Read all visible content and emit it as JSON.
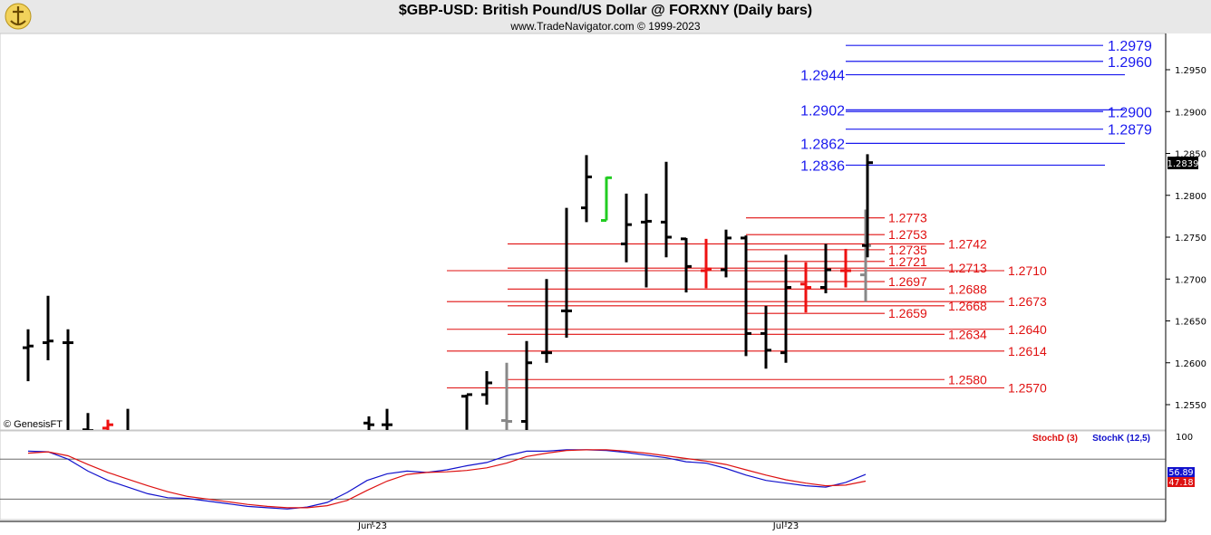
{
  "header": {
    "title": "$GBP-USD:  British Pound/US Dollar @ FORXNY  (Daily bars)",
    "copyright": "www.TradeNavigator.com © 1999-2023"
  },
  "watermark": "© GenesisFT",
  "colors": {
    "blue_level": "#1a1aee",
    "red_level": "#e01010",
    "bar_up": "#000000",
    "bar_green": "#22cc22",
    "bar_red": "#ee1111",
    "bar_gray": "#888888",
    "stoch_d": "#dd1111",
    "stoch_k": "#1111cc"
  },
  "chart_data": [
    {
      "type": "ohlc",
      "title": "$GBP-USD:  British Pound/US Dollar @ FORXNY  (Daily bars)",
      "ylim": [
        1.251,
        1.299
      ],
      "y_ticks": [
        "1.2550",
        "1.2600",
        "1.2650",
        "1.2700",
        "1.2750",
        "1.2800",
        "1.2850",
        "1.2900",
        "1.2950"
      ],
      "x_ticks": [
        "Jun-23",
        "Jul-23"
      ],
      "last_price": "1.2839",
      "bars": [
        {
          "h": 1.264,
          "l": 1.2578,
          "o": 1.2618,
          "c": 1.262,
          "color": "black"
        },
        {
          "h": 1.268,
          "l": 1.2603,
          "o": 1.2624,
          "c": 1.2626,
          "color": "black"
        },
        {
          "h": 1.264,
          "l": 1.251,
          "o": 1.2624,
          "c": 1.2624,
          "color": "black"
        },
        {
          "h": 1.254,
          "l": 1.251,
          "o": 1.252,
          "c": 1.2519,
          "color": "black"
        },
        {
          "h": 1.2532,
          "l": 1.2518,
          "o": 1.2522,
          "c": 1.2526,
          "color": "red"
        },
        {
          "h": 1.2545,
          "l": 1.251,
          "o": 1.2515,
          "c": 1.2518,
          "color": "black"
        },
        {
          "h": 1.2536,
          "l": 1.251,
          "o": 1.2528,
          "c": 1.2526,
          "color": "black"
        },
        {
          "h": 1.2545,
          "l": 1.251,
          "o": 1.2526,
          "c": 1.2526,
          "color": "black"
        },
        {
          "h": 1.2562,
          "l": 1.252,
          "o": 1.256,
          "c": 1.2562,
          "color": "black"
        },
        {
          "h": 1.259,
          "l": 1.255,
          "o": 1.2562,
          "c": 1.2576,
          "color": "black"
        },
        {
          "h": 1.26,
          "l": 1.251,
          "o": 1.2531,
          "c": 1.253,
          "color": "gray"
        },
        {
          "h": 1.2626,
          "l": 1.251,
          "o": 1.253,
          "c": 1.26,
          "color": "black"
        },
        {
          "h": 1.27,
          "l": 1.26,
          "o": 1.2612,
          "c": 1.2612,
          "color": "black"
        },
        {
          "h": 1.2785,
          "l": 1.263,
          "o": 1.2662,
          "c": 1.2662,
          "color": "black"
        },
        {
          "h": 1.2848,
          "l": 1.2768,
          "o": 1.2785,
          "c": 1.2822,
          "color": "black"
        },
        {
          "h": 1.2822,
          "l": 1.277,
          "o": 1.277,
          "c": 1.2821,
          "color": "green"
        },
        {
          "h": 1.2802,
          "l": 1.272,
          "o": 1.2742,
          "c": 1.2765,
          "color": "black"
        },
        {
          "h": 1.2802,
          "l": 1.269,
          "o": 1.2768,
          "c": 1.2769,
          "color": "black"
        },
        {
          "h": 1.284,
          "l": 1.2726,
          "o": 1.2768,
          "c": 1.275,
          "color": "black"
        },
        {
          "h": 1.2749,
          "l": 1.2684,
          "o": 1.2748,
          "c": 1.2715,
          "color": "black"
        },
        {
          "h": 1.2748,
          "l": 1.2689,
          "o": 1.271,
          "c": 1.2712,
          "color": "red"
        },
        {
          "h": 1.2759,
          "l": 1.2702,
          "o": 1.2711,
          "c": 1.2749,
          "color": "black"
        },
        {
          "h": 1.2752,
          "l": 1.2608,
          "o": 1.2749,
          "c": 1.2635,
          "color": "black"
        },
        {
          "h": 1.2668,
          "l": 1.2593,
          "o": 1.2635,
          "c": 1.2615,
          "color": "black"
        },
        {
          "h": 1.2729,
          "l": 1.26,
          "o": 1.2612,
          "c": 1.269,
          "color": "black"
        },
        {
          "h": 1.272,
          "l": 1.266,
          "o": 1.2694,
          "c": 1.269,
          "color": "red"
        },
        {
          "h": 1.2742,
          "l": 1.2683,
          "o": 1.269,
          "c": 1.2711,
          "color": "black"
        },
        {
          "h": 1.2736,
          "l": 1.269,
          "o": 1.271,
          "c": 1.271,
          "color": "red"
        },
        {
          "h": 1.2783,
          "l": 1.2673,
          "o": 1.2705,
          "c": 1.274,
          "color": "gray"
        },
        {
          "h": 1.2849,
          "l": 1.2726,
          "o": 1.274,
          "c": 1.2839,
          "color": "black"
        }
      ],
      "levels_blue": [
        {
          "value": 1.2979,
          "label": "1.2979",
          "label_side": "right"
        },
        {
          "value": 1.296,
          "label": "1.2960",
          "label_side": "right"
        },
        {
          "value": 1.2944,
          "label": "1.2944",
          "label_side": "left"
        },
        {
          "value": 1.2902,
          "label": "1.2902",
          "label_side": "left"
        },
        {
          "value": 1.29,
          "label": "1.2900",
          "label_side": "right"
        },
        {
          "value": 1.2879,
          "label": "1.2879",
          "label_side": "right"
        },
        {
          "value": 1.2862,
          "label": "1.2862",
          "label_side": "left"
        },
        {
          "value": 1.2836,
          "label": "1.2836",
          "label_side": "left"
        }
      ],
      "levels_red": [
        {
          "value": 1.2773,
          "label": "1.2773",
          "group": "near"
        },
        {
          "value": 1.2753,
          "label": "1.2753",
          "group": "near"
        },
        {
          "value": 1.2742,
          "label": "1.2742",
          "group": "mid"
        },
        {
          "value": 1.2735,
          "label": "1.2735",
          "group": "near"
        },
        {
          "value": 1.2721,
          "label": "1.2721",
          "group": "near"
        },
        {
          "value": 1.2713,
          "label": "1.2713",
          "group": "mid"
        },
        {
          "value": 1.271,
          "label": "1.2710",
          "group": "far"
        },
        {
          "value": 1.2697,
          "label": "1.2697",
          "group": "near"
        },
        {
          "value": 1.2688,
          "label": "1.2688",
          "group": "mid"
        },
        {
          "value": 1.2673,
          "label": "1.2673",
          "group": "far"
        },
        {
          "value": 1.2668,
          "label": "1.2668",
          "group": "mid"
        },
        {
          "value": 1.2659,
          "label": "1.2659",
          "group": "near"
        },
        {
          "value": 1.264,
          "label": "1.2640",
          "group": "far"
        },
        {
          "value": 1.2634,
          "label": "1.2634",
          "group": "mid"
        },
        {
          "value": 1.2614,
          "label": "1.2614",
          "group": "far"
        },
        {
          "value": 1.258,
          "label": "1.2580",
          "group": "mid"
        },
        {
          "value": 1.257,
          "label": "1.2570",
          "group": "far"
        }
      ]
    },
    {
      "type": "line",
      "legend": [
        {
          "name": "StochD (3)"
        },
        {
          "name": "StochK (12,5)"
        }
      ],
      "y_top_label": "100",
      "ylim": [
        -10,
        100
      ],
      "reference_lines": [
        80,
        20
      ],
      "last_values": {
        "k": "56.89",
        "d": "47.18"
      },
      "series": [
        {
          "name": "StochK (12,5)",
          "values": [
            92,
            91,
            80,
            62,
            48,
            38,
            28,
            22,
            21,
            17,
            13,
            9,
            7,
            5,
            8,
            15,
            30,
            48,
            58,
            62,
            60,
            64,
            70,
            75,
            85,
            92,
            92,
            94,
            94,
            93,
            90,
            86,
            82,
            76,
            74,
            66,
            56,
            48,
            44,
            40,
            38,
            45,
            57
          ]
        },
        {
          "name": "StochD (3)",
          "values": [
            89,
            91,
            85,
            72,
            60,
            50,
            40,
            31,
            24,
            20,
            16,
            12,
            9,
            7,
            7,
            10,
            18,
            33,
            47,
            57,
            60,
            61,
            63,
            67,
            74,
            84,
            89,
            93,
            94,
            94,
            92,
            89,
            85,
            81,
            77,
            72,
            64,
            56,
            49,
            44,
            40,
            41,
            47
          ]
        }
      ]
    }
  ]
}
